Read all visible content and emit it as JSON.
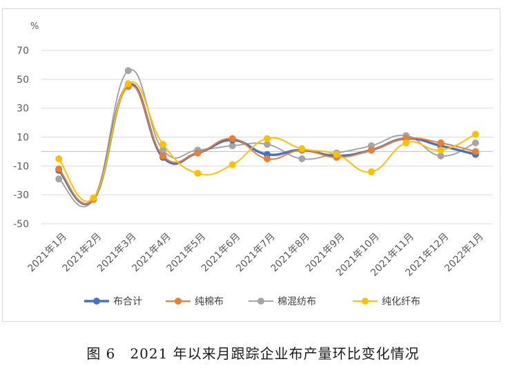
{
  "caption": "图 6　2021 年以来月跟踪企业布产量环比变化情况",
  "chart_data": {
    "type": "line",
    "unit_label": "%",
    "categories": [
      "2021年1月",
      "2021年2月",
      "2021年3月",
      "2021年4月",
      "2021年5月",
      "2021年6月",
      "2021年7月",
      "2021年8月",
      "2021年9月",
      "2021年10月",
      "2021年11月",
      "2021年12月",
      "2022年1月"
    ],
    "y_ticks": [
      70,
      50,
      30,
      10,
      -10,
      -30,
      -50
    ],
    "y_tick_labels": [
      "70",
      "50",
      "30",
      "10",
      "-10",
      "-30",
      "-50"
    ],
    "ylim": [
      -50,
      70
    ],
    "grid": true,
    "smooth": true,
    "legend_position": "bottom",
    "series": [
      {
        "name": "布合计",
        "color": "#4472c4",
        "values": [
          -13,
          -33,
          46,
          -4,
          -1,
          8,
          -2,
          1,
          -3,
          1,
          9,
          4,
          -2
        ]
      },
      {
        "name": "纯棉布",
        "color": "#ed7d31",
        "values": [
          -12,
          -33,
          45,
          -3,
          -1,
          9,
          -5,
          1,
          -4,
          1,
          9,
          6,
          0
        ]
      },
      {
        "name": "棉混纺布",
        "color": "#a5a5a5",
        "values": [
          -19,
          -33,
          56,
          1,
          1,
          4,
          5,
          -5,
          -1,
          4,
          11,
          -3,
          6
        ]
      },
      {
        "name": "纯化纤布",
        "color": "#ffc000",
        "values": [
          -5,
          -32,
          47,
          5,
          -15,
          -9,
          9,
          2,
          -2,
          -14,
          6,
          1,
          12
        ]
      }
    ]
  }
}
